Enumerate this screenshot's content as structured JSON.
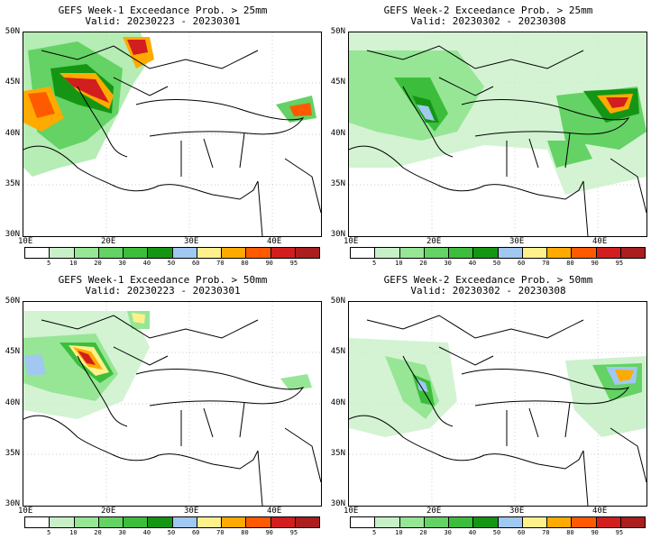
{
  "panels": [
    {
      "title1": "GEFS Week-1 Exceedance Prob. > 25mm",
      "title2": "Valid: 20230223 - 20230301"
    },
    {
      "title1": "GEFS Week-2 Exceedance Prob. > 25mm",
      "title2": "Valid: 20230302 - 20230308"
    },
    {
      "title1": "GEFS Week-1 Exceedance Prob. > 50mm",
      "title2": "Valid: 20230223 - 20230301"
    },
    {
      "title1": "GEFS Week-2 Exceedance Prob. > 50mm",
      "title2": "Valid: 20230302 - 20230308"
    }
  ],
  "axes": {
    "lat_labels": [
      "50N",
      "45N",
      "40N",
      "35N",
      "30N"
    ],
    "lon_labels": [
      "10E",
      "20E",
      "30E",
      "40E"
    ]
  },
  "colorbar": {
    "labels": [
      "5",
      "10",
      "20",
      "30",
      "40",
      "50",
      "60",
      "70",
      "80",
      "90",
      "95"
    ],
    "colors": [
      "#ffffff",
      "#c8f0c8",
      "#96e696",
      "#64d264",
      "#3cbe3c",
      "#149614",
      "#a0c8f0",
      "#fff08c",
      "#ffaa00",
      "#ff5a00",
      "#d21e1e",
      "#aa1e1e"
    ]
  }
}
